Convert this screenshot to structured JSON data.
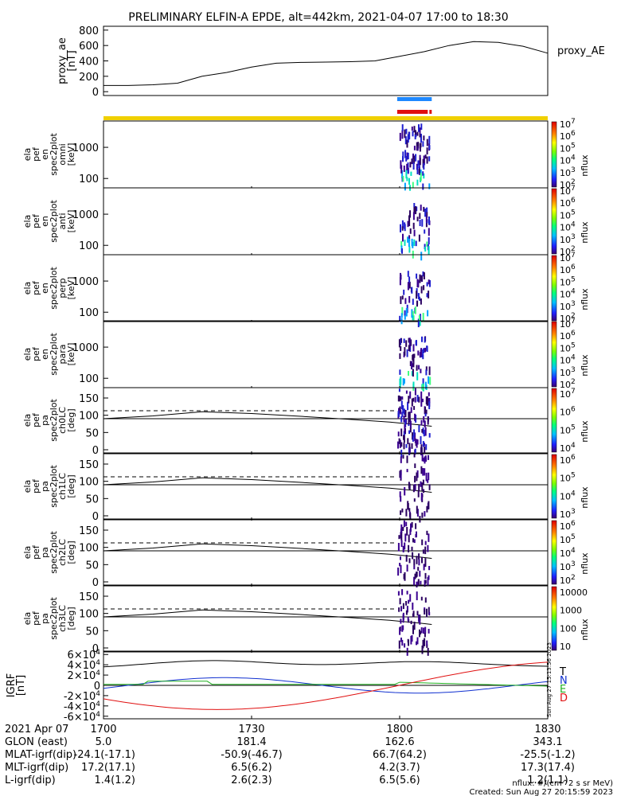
{
  "title": "PRELIMINARY ELFIN-A EPDE, alt=442km, 2021-04-07 17:00 to 18:30",
  "colors": {
    "blue_bar": "#1e88ff",
    "red_bar": "#e01010",
    "yellow_bar": "#f0d000",
    "axis": "#000000"
  },
  "proxy_ae": {
    "ylabel": "proxy_ae\n[nT]",
    "legend": "proxy_AE",
    "ylim": [
      -50,
      850
    ],
    "ticks": [
      "0",
      "200",
      "400",
      "600",
      "800"
    ],
    "chart_data": {
      "type": "line",
      "x_minutes": [
        0,
        5,
        10,
        15,
        20,
        25,
        30,
        35,
        40,
        45,
        50,
        55,
        60,
        65,
        70,
        75,
        80,
        85,
        90
      ],
      "values": [
        80,
        80,
        90,
        110,
        200,
        250,
        320,
        370,
        380,
        385,
        390,
        400,
        460,
        520,
        600,
        650,
        640,
        590,
        500
      ]
    }
  },
  "spec_panels": [
    {
      "ylabel": [
        "ela",
        "pef",
        "en",
        "spec2plot",
        "omni",
        "[keV]"
      ],
      "ticks": [
        "100",
        "1000"
      ]
    },
    {
      "ylabel": [
        "ela",
        "pef",
        "en",
        "spec2plot",
        "anti",
        "[keV]"
      ],
      "ticks": [
        "100",
        "1000"
      ]
    },
    {
      "ylabel": [
        "ela",
        "pef",
        "en",
        "spec2plot",
        "perp",
        "[keV]"
      ],
      "ticks": [
        "100",
        "1000"
      ]
    },
    {
      "ylabel": [
        "ela",
        "pef",
        "en",
        "spec2plot",
        "para",
        "[keV]"
      ],
      "ticks": [
        "100",
        "1000"
      ]
    }
  ],
  "spec_colorbar": {
    "label": "nflux",
    "ticks": [
      "10^2",
      "10^3",
      "10^4",
      "10^5",
      "10^6",
      "10^7"
    ]
  },
  "pa_panels": [
    {
      "ylabel": [
        "ela",
        "pef",
        "pa",
        "spec2plot",
        "ch0LC",
        "[deg]"
      ],
      "ticks": [
        "0",
        "50",
        "100",
        "150"
      ],
      "cbar": [
        "10^4",
        "10^5",
        "10^6",
        "10^7"
      ]
    },
    {
      "ylabel": [
        "ela",
        "pef",
        "pa",
        "spec2plot",
        "ch1LC",
        "[deg]"
      ],
      "ticks": [
        "0",
        "50",
        "100",
        "150"
      ],
      "cbar": [
        "10^3",
        "10^4",
        "10^5",
        "10^6"
      ]
    },
    {
      "ylabel": [
        "ela",
        "pef",
        "pa",
        "spec2plot",
        "ch2LC",
        "[deg]"
      ],
      "ticks": [
        "0",
        "50",
        "100",
        "150"
      ],
      "cbar": [
        "10^2",
        "10^3",
        "10^4",
        "10^5",
        "10^6"
      ]
    },
    {
      "ylabel": [
        "ela",
        "pef",
        "pa",
        "spec2plot",
        "ch3LC",
        "[deg]"
      ],
      "ticks": [
        "0",
        "50",
        "100",
        "150"
      ],
      "cbar": [
        "10",
        "100",
        "1000",
        "10000"
      ]
    }
  ],
  "pa_label": "nflux",
  "igrf": {
    "ylabel": "IGRF\n[nT]",
    "ticks": [
      "-6×10^4",
      "-4×10^4",
      "-2×10^4",
      "0",
      "2×10^4",
      "4×10^4",
      "6×10^4"
    ],
    "legend": [
      "T",
      "N",
      "E",
      "D"
    ],
    "legend_colors": [
      "#000000",
      "#1030d0",
      "#20b020",
      "#e01010"
    ],
    "side_text": "Sun Aug 27 15:13:56 2023"
  },
  "xaxis": {
    "tick_labels": [
      "1700",
      "1730",
      "1800",
      "1830"
    ],
    "tick_minutes": [
      0,
      30,
      60,
      90
    ]
  },
  "ephem": {
    "rows": [
      {
        "label": "2021 Apr 07",
        "values": [
          "",
          "",
          "",
          ""
        ]
      },
      {
        "label": "GLON (east)",
        "values": [
          "5.0",
          "181.4",
          "162.6",
          "343.1"
        ]
      },
      {
        "label": "MLAT-igrf(dip)",
        "lead": "-24.1(-17.1)",
        "values": [
          "",
          "-50.9(-46.7)",
          "66.7(64.2)",
          "-25.5(-1.2)"
        ]
      },
      {
        "label": "MLT-igrf(dip)",
        "lead": "17.2(17.1)",
        "values": [
          "",
          "6.5(6.2)",
          "4.2(3.7)",
          "17.3(17.4)"
        ]
      },
      {
        "label": "L-igrf(dip)",
        "lead": "1.4(1.2)",
        "values": [
          "",
          "2.6(2.3)",
          "6.5(5.6)",
          "1.2(1.1)"
        ]
      }
    ]
  },
  "footer": {
    "units": "nflux: #/(cm^2 s sr MeV)",
    "created": "Created: Sun Aug 27 20:15:59 2023"
  }
}
